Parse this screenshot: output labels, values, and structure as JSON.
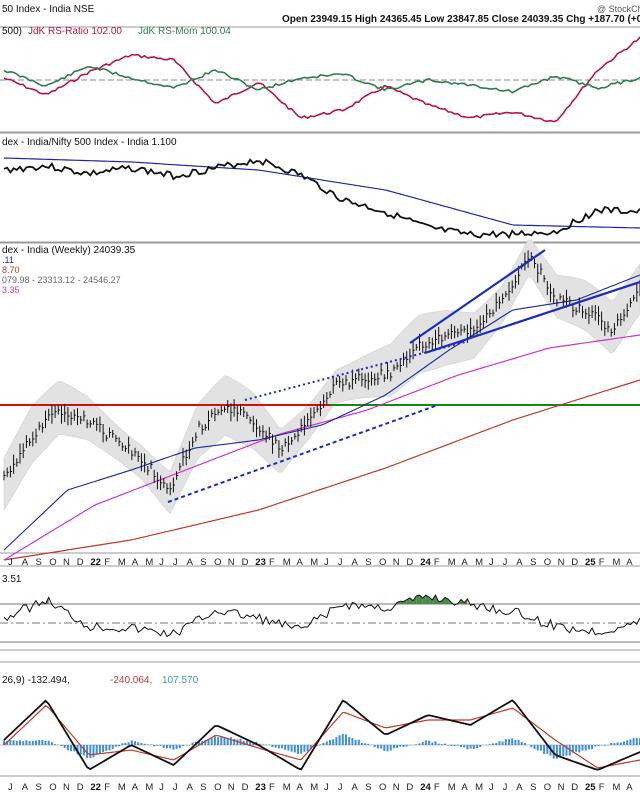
{
  "header": {
    "title": "50 Index - India  NSE",
    "ohlc": "Open 23949.15  High 24365.45  Low 23847.85  Close 24039.35  Chg +187.70 (+0",
    "credit": "@ StockCh"
  },
  "panels": {
    "rrg": {
      "label_prefix": "500)",
      "ratio_label": "JdK RS-Ratio 102.00",
      "mom_label": "JdK RS-Mom 100.04"
    },
    "ratio": {
      "label": "dex - India/Nifty 500 Index - India 1.100"
    },
    "price": {
      "label": "dex - India (Weekly) 24039.35",
      "legend": [
        {
          "text": ".11",
          "color": "#1b2a9a"
        },
        {
          "text": "8.70",
          "color": "#c0392b"
        },
        {
          "text": "079.98 - 23313.12 - 24546.27",
          "color": "#666666"
        },
        {
          "text": "3.35",
          "color": "#cc33cc"
        }
      ]
    },
    "rsi": {
      "label": "3.51"
    },
    "macd": {
      "label_main": "26,9) -132.494,",
      "label_signal": "-240.064,",
      "label_hist": "107.570"
    }
  },
  "colors": {
    "ratio_line": "#b0174e",
    "mom_line": "#2e7d4f",
    "price_line": "#111111",
    "ma_short": "#1b2a9a",
    "ma_mid": "#cc33cc",
    "ma_long": "#c0392b",
    "hline_red": "#cc1111",
    "hline_green": "#118811",
    "trend": "#1a2dbd",
    "band": "#e2e2e2",
    "hist": "#3d8fd6",
    "rsi_fill": "#4a8a4a"
  },
  "axis": {
    "months": [
      "J",
      "A",
      "S",
      "O",
      "N",
      "D",
      "22",
      "F",
      "M",
      "A",
      "M",
      "J",
      "J",
      "A",
      "S",
      "O",
      "N",
      "D",
      "23",
      "F",
      "M",
      "A",
      "M",
      "J",
      "J",
      "A",
      "S",
      "O",
      "N",
      "D",
      "24",
      "F",
      "M",
      "A",
      "M",
      "J",
      "J",
      "A",
      "S",
      "O",
      "N",
      "D",
      "25",
      "F",
      "M",
      "A"
    ],
    "year_labels": [
      "22",
      "23",
      "24",
      "25"
    ]
  },
  "chart_data": [
    {
      "type": "line",
      "x": [
        "2021-07",
        "2021-10",
        "2022-01",
        "2022-04",
        "2022-07",
        "2022-10",
        "2023-01",
        "2023-04",
        "2023-07",
        "2023-10",
        "2024-01",
        "2024-04",
        "2024-07",
        "2024-10",
        "2025-01",
        "2025-04"
      ],
      "series": [
        {
          "name": "JdK RS-Ratio",
          "values": [
            100.2,
            99.8,
            100.1,
            100.9,
            100.7,
            99.7,
            100.2,
            99.0,
            99.3,
            100.3,
            99.6,
            99.3,
            99.5,
            99.3,
            101.0,
            102.0
          ]
        },
        {
          "name": "JdK RS-Mom",
          "values": [
            100.1,
            99.7,
            100.3,
            100.2,
            100.0,
            100.4,
            99.9,
            100.2,
            100.2,
            99.9,
            100.1,
            100.0,
            99.9,
            100.2,
            99.9,
            100.04
          ]
        }
      ]
    },
    {
      "type": "line",
      "x": [
        "2021-07",
        "2021-10",
        "2022-01",
        "2022-04",
        "2022-07",
        "2022-10",
        "2023-01",
        "2023-04",
        "2023-07",
        "2023-10",
        "2024-01",
        "2024-04",
        "2024-07",
        "2024-10",
        "2025-01",
        "2025-04"
      ],
      "series": [
        {
          "name": "India/Nifty 500",
          "values": [
            1.115,
            1.116,
            1.119,
            1.116,
            1.118,
            1.116,
            1.12,
            1.117,
            1.108,
            1.103,
            1.098,
            1.094,
            1.093,
            1.093,
            1.101,
            1.1
          ]
        }
      ]
    },
    {
      "type": "line",
      "x": [
        "2021-07",
        "2021-09",
        "2021-11",
        "2022-01",
        "2022-03",
        "2022-05",
        "2022-07",
        "2022-09",
        "2022-11",
        "2023-01",
        "2023-03",
        "2023-05",
        "2023-07",
        "2023-09",
        "2023-11",
        "2024-01",
        "2024-03",
        "2024-05",
        "2024-07",
        "2024-09",
        "2024-11",
        "2025-01",
        "2025-03",
        "2025-04"
      ],
      "series": [
        {
          "name": "Close",
          "values": [
            15800,
            16700,
            17900,
            17400,
            16900,
            16200,
            15300,
            17200,
            18300,
            18000,
            17300,
            18400,
            19500,
            19700,
            19900,
            21600,
            22100,
            22500,
            24300,
            25700,
            24100,
            23500,
            22200,
            24039
          ]
        }
      ],
      "hlines": [
        18000,
        17350
      ],
      "ylim": [
        14500,
        26500
      ]
    },
    {
      "type": "line",
      "series": [
        {
          "name": "RSI",
          "values": [
            52,
            66,
            48,
            44,
            40,
            58,
            54,
            44,
            62,
            60,
            70,
            62,
            55,
            48,
            44,
            53.51
          ]
        }
      ]
    },
    {
      "type": "bar",
      "series": [
        {
          "name": "MACD",
          "values": [
            -132.494
          ]
        },
        {
          "name": "Signal",
          "values": [
            -240.064
          ]
        },
        {
          "name": "Histogram",
          "values": [
            107.57
          ]
        }
      ]
    }
  ]
}
